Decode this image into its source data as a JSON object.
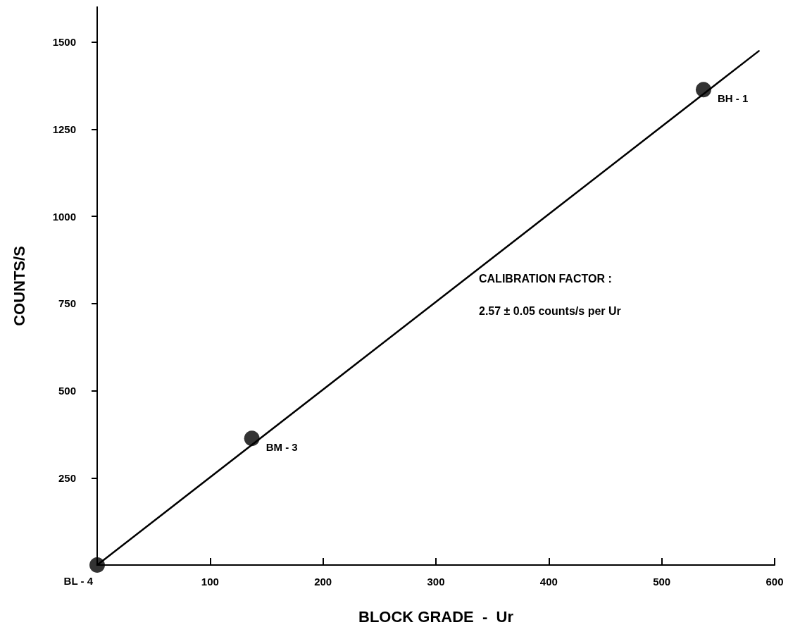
{
  "chart_data": {
    "type": "scatter",
    "xlabel": "BLOCK GRADE  -  Ur",
    "ylabel": "COUNTS/S",
    "xlim": [
      0,
      600
    ],
    "xticks": [
      100,
      200,
      300,
      400,
      500,
      600
    ],
    "ylim": [
      0,
      1600
    ],
    "yticks": [
      250,
      500,
      750,
      1000,
      1250,
      1500
    ],
    "grid": false,
    "marker": "circle",
    "series": [
      {
        "color": "#000000",
        "x": [
          0,
          137,
          537
        ],
        "values": [
          0,
          363,
          1363
        ]
      },
      {
        "type": "line",
        "color": "#000000",
        "marker": "none",
        "line_style": "solid",
        "x": [
          0,
          586
        ],
        "values": [
          0,
          1474
        ]
      }
    ],
    "annotations": [
      {
        "text": "BL - 4",
        "x": 0,
        "y": 0
      },
      {
        "text": "BM - 3",
        "x": 137,
        "y": 363
      },
      {
        "text": "BH - 1",
        "x": 537,
        "y": 1363
      },
      "CALIBRATION FACTOR :",
      "2.57 ± 0.05 counts/s per Ur"
    ]
  }
}
